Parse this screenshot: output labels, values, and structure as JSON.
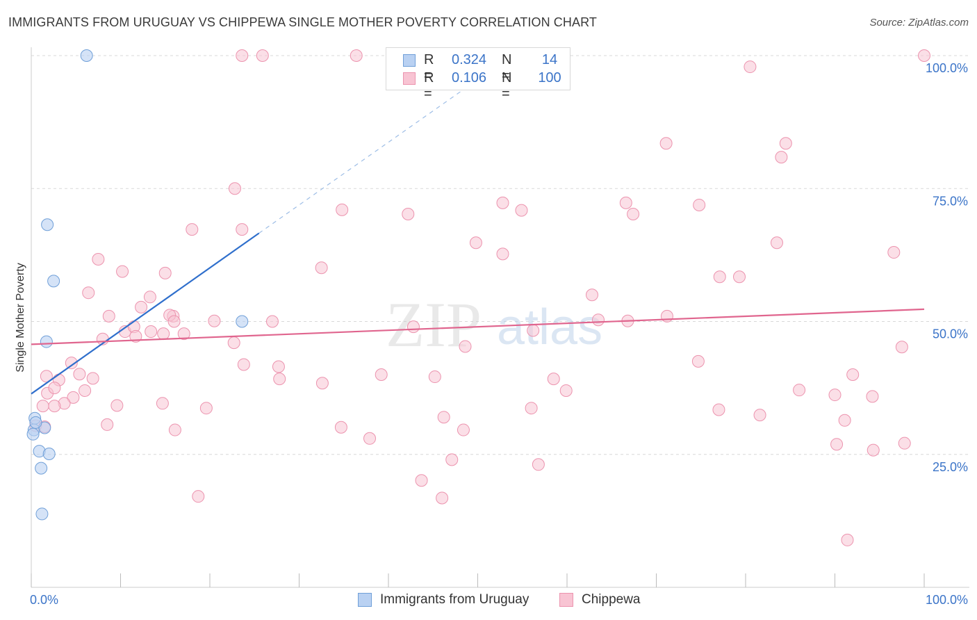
{
  "title": "IMMIGRANTS FROM URUGUAY VS CHIPPEWA SINGLE MOTHER POVERTY CORRELATION CHART",
  "source": "Source: ZipAtlas.com",
  "watermark": {
    "zip": "ZIP",
    "atlas": "atlas"
  },
  "legend": {
    "rows": [
      {
        "r_label": "R =",
        "r_value": "0.324",
        "n_label": "N =",
        "n_value": "14"
      },
      {
        "r_label": "R =",
        "r_value": "0.106",
        "n_label": "N =",
        "n_value": "100"
      }
    ]
  },
  "bottom_legend": [
    "Immigrants from Uruguay",
    "Chippewa"
  ],
  "colors": {
    "uruguay_fill": "#b9d1f2",
    "uruguay_stroke": "#6f9fd8",
    "uruguay_line": "#2f6fcc",
    "chippewa_fill": "#f8c4d3",
    "chippewa_stroke": "#ec93ae",
    "chippewa_line": "#e0658e",
    "tick_label": "#3b74c8",
    "grid": "#d8d8d8"
  },
  "chart_data": {
    "type": "scatter",
    "title": "IMMIGRANTS FROM URUGUAY VS CHIPPEWA SINGLE MOTHER POVERTY CORRELATION CHART",
    "xlabel": "",
    "ylabel": "Single Mother Poverty",
    "xlim": [
      0,
      100
    ],
    "ylim": [
      0,
      100
    ],
    "x_tick_labels": [
      "0.0%",
      "100.0%"
    ],
    "y_tick_labels": [
      "25.0%",
      "50.0%",
      "75.0%",
      "100.0%"
    ],
    "y_ticks": [
      25,
      50,
      75,
      100
    ],
    "grid": true,
    "legend_position": "top-center",
    "series": [
      {
        "name": "Immigrants from Uruguay",
        "r": 0.324,
        "n": 14,
        "points": [
          [
            6.2,
            100
          ],
          [
            1.8,
            68.2
          ],
          [
            2.5,
            57.6
          ],
          [
            23.6,
            50.0
          ],
          [
            1.7,
            46.2
          ],
          [
            0.4,
            31.8
          ],
          [
            0.3,
            29.6
          ],
          [
            0.2,
            28.8
          ],
          [
            1.5,
            30.0
          ],
          [
            0.9,
            25.6
          ],
          [
            2.0,
            25.1
          ],
          [
            1.1,
            22.4
          ],
          [
            1.2,
            13.8
          ],
          [
            0.5,
            31.0
          ]
        ],
        "trend": {
          "x0": 0,
          "y0": 36.4,
          "x1": 25.5,
          "y1": 66.6,
          "dash_to_x": 50,
          "dash_to_y": 95.5
        }
      },
      {
        "name": "Chippewa",
        "r": 0.106,
        "n": 100,
        "points": [
          [
            23.6,
            100
          ],
          [
            25.9,
            100
          ],
          [
            36.4,
            100
          ],
          [
            100,
            100
          ],
          [
            80.5,
            97.9
          ],
          [
            71.1,
            83.5
          ],
          [
            84.5,
            83.5
          ],
          [
            84,
            80.9
          ],
          [
            22.8,
            75.0
          ],
          [
            34.8,
            71.0
          ],
          [
            52.8,
            72.3
          ],
          [
            66.6,
            72.3
          ],
          [
            74.8,
            71.9
          ],
          [
            42.2,
            70.2
          ],
          [
            54.9,
            70.9
          ],
          [
            67.4,
            70.2
          ],
          [
            18.0,
            67.3
          ],
          [
            23.6,
            67.3
          ],
          [
            49.8,
            64.8
          ],
          [
            83.5,
            64.8
          ],
          [
            96.6,
            63.0
          ],
          [
            52.8,
            62.7
          ],
          [
            7.5,
            61.7
          ],
          [
            32.5,
            60.1
          ],
          [
            10.2,
            59.4
          ],
          [
            15.0,
            59.1
          ],
          [
            77.1,
            58.4
          ],
          [
            79.3,
            58.4
          ],
          [
            6.4,
            55.4
          ],
          [
            62.8,
            55.0
          ],
          [
            13.3,
            54.6
          ],
          [
            12.3,
            52.7
          ],
          [
            8.7,
            51.0
          ],
          [
            15.9,
            51.0
          ],
          [
            15.5,
            51.2
          ],
          [
            16.0,
            50.0
          ],
          [
            20.5,
            50.1
          ],
          [
            27.0,
            50.0
          ],
          [
            63.5,
            50.3
          ],
          [
            66.8,
            50.1
          ],
          [
            71.2,
            51.0
          ],
          [
            10.5,
            48.1
          ],
          [
            11.5,
            49.0
          ],
          [
            13.4,
            48.1
          ],
          [
            14.8,
            47.7
          ],
          [
            17.1,
            47.7
          ],
          [
            11.7,
            47.2
          ],
          [
            8.0,
            46.7
          ],
          [
            22.7,
            46.0
          ],
          [
            42.8,
            49.0
          ],
          [
            56.2,
            48.3
          ],
          [
            48.6,
            45.3
          ],
          [
            97.5,
            45.2
          ],
          [
            4.5,
            42.2
          ],
          [
            23.8,
            41.9
          ],
          [
            27.7,
            41.5
          ],
          [
            74.7,
            42.5
          ],
          [
            1.7,
            39.7
          ],
          [
            3.1,
            39.0
          ],
          [
            5.4,
            40.1
          ],
          [
            6.9,
            39.3
          ],
          [
            27.8,
            39.2
          ],
          [
            32.6,
            38.4
          ],
          [
            39.2,
            40.0
          ],
          [
            45.2,
            39.6
          ],
          [
            58.5,
            39.2
          ],
          [
            92.0,
            40.0
          ],
          [
            1.8,
            36.5
          ],
          [
            2.6,
            37.5
          ],
          [
            6.0,
            37.0
          ],
          [
            4.7,
            35.7
          ],
          [
            3.7,
            34.6
          ],
          [
            1.3,
            34.1
          ],
          [
            2.6,
            34.1
          ],
          [
            9.6,
            34.2
          ],
          [
            14.7,
            34.6
          ],
          [
            19.6,
            33.7
          ],
          [
            56.0,
            33.7
          ],
          [
            59.9,
            37.0
          ],
          [
            77.0,
            33.4
          ],
          [
            86.0,
            37.1
          ],
          [
            90.0,
            36.2
          ],
          [
            94.2,
            35.9
          ],
          [
            0.5,
            30.4
          ],
          [
            1.5,
            30.2
          ],
          [
            8.5,
            30.6
          ],
          [
            16.1,
            29.6
          ],
          [
            34.7,
            30.1
          ],
          [
            37.9,
            28.0
          ],
          [
            46.2,
            32.0
          ],
          [
            48.4,
            29.6
          ],
          [
            81.6,
            32.4
          ],
          [
            91.1,
            31.4
          ],
          [
            47.1,
            24.0
          ],
          [
            56.8,
            23.1
          ],
          [
            90.2,
            26.9
          ],
          [
            94.3,
            25.8
          ],
          [
            97.8,
            27.1
          ],
          [
            43.7,
            20.1
          ],
          [
            46.0,
            16.8
          ],
          [
            18.7,
            17.1
          ],
          [
            91.4,
            8.9
          ]
        ],
        "trend": {
          "x0": 0,
          "y0": 45.7,
          "x1": 100,
          "y1": 52.3
        }
      }
    ]
  }
}
